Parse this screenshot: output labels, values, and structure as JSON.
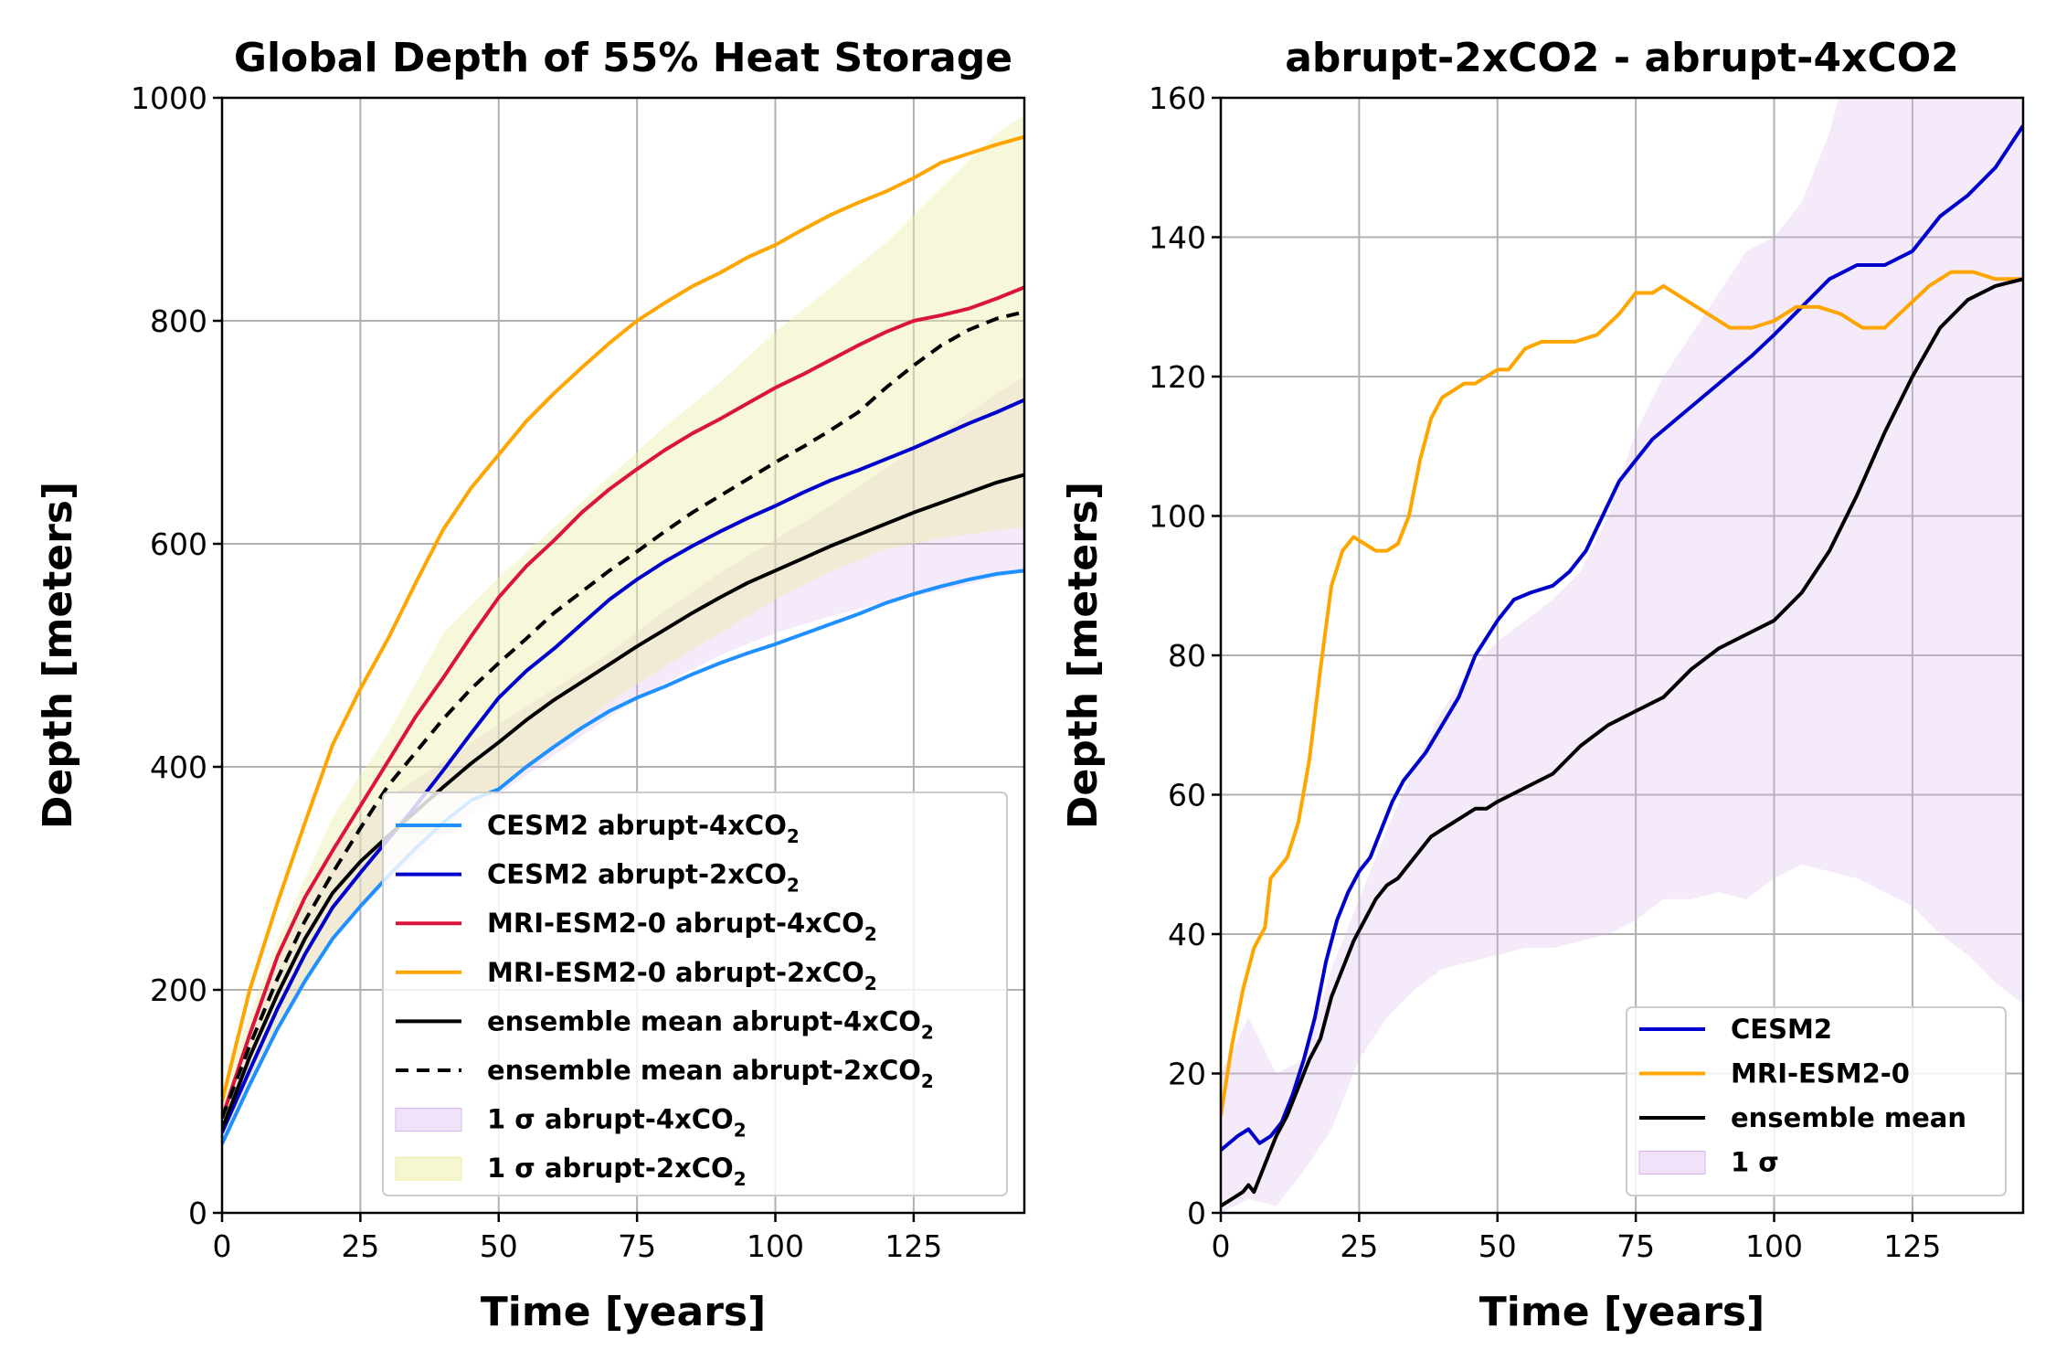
{
  "chart_data": [
    {
      "type": "line",
      "title": "Global Depth of 55% Heat Storage",
      "xlabel": "Time [years]",
      "ylabel": "Depth [meters]",
      "xlim": [
        0,
        145
      ],
      "ylim": [
        0,
        1000
      ],
      "xticks": [
        0,
        25,
        50,
        75,
        100,
        125
      ],
      "yticks": [
        0,
        200,
        400,
        600,
        800,
        1000
      ],
      "grid": true,
      "legend_position": "lower-right",
      "series": [
        {
          "name": "CESM2 abrupt-4xCO2",
          "label_main": "CESM2 abrupt-4xCO",
          "color": "#1e90ff",
          "dash": "solid",
          "x": [
            0,
            5,
            10,
            15,
            20,
            25,
            30,
            35,
            40,
            45,
            50,
            55,
            60,
            65,
            70,
            75,
            80,
            85,
            90,
            95,
            100,
            105,
            110,
            115,
            120,
            125,
            130,
            135,
            140,
            145
          ],
          "y": [
            62,
            115,
            165,
            208,
            246,
            275,
            302,
            327,
            350,
            370,
            380,
            400,
            418,
            435,
            450,
            462,
            472,
            483,
            493,
            502,
            510,
            519,
            528,
            537,
            547,
            555,
            562,
            568,
            573,
            576
          ]
        },
        {
          "name": "CESM2 abrupt-2xCO2",
          "label_main": "CESM2 abrupt-2xCO",
          "color": "#0000cd",
          "dash": "solid",
          "x": [
            0,
            5,
            10,
            15,
            20,
            25,
            30,
            35,
            40,
            45,
            50,
            55,
            60,
            65,
            70,
            75,
            80,
            85,
            90,
            95,
            100,
            105,
            110,
            115,
            120,
            125,
            130,
            135,
            140,
            145
          ],
          "y": [
            72,
            128,
            183,
            232,
            274,
            305,
            335,
            365,
            397,
            430,
            462,
            486,
            506,
            528,
            550,
            568,
            584,
            598,
            611,
            623,
            634,
            646,
            657,
            666,
            676,
            686,
            697,
            708,
            718,
            729
          ]
        },
        {
          "name": "MRI-ESM2-0 abrupt-4xCO2",
          "label_main": "MRI-ESM2-0 abrupt-4xCO",
          "color": "#dc143c",
          "dash": "solid",
          "x": [
            0,
            5,
            10,
            15,
            20,
            25,
            30,
            35,
            40,
            45,
            50,
            55,
            60,
            65,
            70,
            75,
            80,
            85,
            90,
            95,
            100,
            105,
            110,
            115,
            120,
            125,
            130,
            135,
            140,
            145
          ],
          "y": [
            85,
            160,
            230,
            283,
            325,
            365,
            405,
            445,
            480,
            517,
            552,
            580,
            603,
            628,
            649,
            667,
            684,
            699,
            712,
            726,
            740,
            752,
            765,
            778,
            790,
            800,
            805,
            811,
            820,
            830
          ]
        },
        {
          "name": "MRI-ESM2-0 abrupt-2xCO2",
          "label_main": "MRI-ESM2-0 abrupt-2xCO",
          "color": "#ffa500",
          "dash": "solid",
          "x": [
            0,
            5,
            10,
            15,
            20,
            25,
            30,
            35,
            40,
            45,
            50,
            55,
            60,
            65,
            70,
            75,
            80,
            85,
            90,
            95,
            100,
            105,
            110,
            115,
            120,
            125,
            130,
            135,
            140,
            145
          ],
          "y": [
            100,
            200,
            278,
            350,
            420,
            470,
            515,
            565,
            613,
            650,
            680,
            710,
            735,
            758,
            780,
            800,
            816,
            831,
            843,
            857,
            868,
            882,
            895,
            906,
            916,
            928,
            942,
            950,
            958,
            965
          ]
        },
        {
          "name": "ensemble mean abrupt-4xCO2",
          "label_main": "ensemble mean abrupt-4xCO",
          "color": "#000000",
          "dash": "solid",
          "x": [
            0,
            5,
            10,
            15,
            20,
            25,
            30,
            35,
            40,
            45,
            50,
            55,
            60,
            65,
            70,
            75,
            80,
            85,
            90,
            95,
            100,
            105,
            110,
            115,
            120,
            125,
            130,
            135,
            140,
            145
          ],
          "y": [
            75,
            140,
            196,
            246,
            287,
            315,
            338,
            360,
            382,
            403,
            422,
            442,
            460,
            476,
            492,
            508,
            523,
            538,
            552,
            565,
            576,
            587,
            598,
            608,
            618,
            628,
            637,
            646,
            655,
            662
          ]
        },
        {
          "name": "ensemble mean abrupt-2xCO2",
          "label_main": "ensemble mean abrupt-2xCO",
          "color": "#000000",
          "dash": "dashed",
          "x": [
            0,
            5,
            10,
            15,
            20,
            25,
            30,
            35,
            40,
            45,
            50,
            55,
            60,
            65,
            70,
            75,
            80,
            85,
            90,
            95,
            100,
            105,
            110,
            115,
            120,
            125,
            130,
            135,
            140,
            145
          ],
          "y": [
            85,
            150,
            210,
            262,
            305,
            345,
            383,
            413,
            443,
            470,
            493,
            515,
            538,
            557,
            576,
            593,
            611,
            628,
            643,
            658,
            673,
            687,
            702,
            718,
            740,
            760,
            778,
            792,
            802,
            808
          ]
        }
      ],
      "bands": [
        {
          "name": "1 σ abrupt-4xCO2",
          "label_main": "1 σ abrupt-4xCO",
          "color": "#d8b4ee",
          "opacity": 0.28,
          "x": [
            0,
            10,
            20,
            30,
            40,
            50,
            60,
            70,
            80,
            90,
            100,
            110,
            120,
            130,
            140,
            145
          ],
          "lower": [
            60,
            170,
            245,
            298,
            338,
            375,
            410,
            445,
            475,
            500,
            520,
            535,
            548,
            558,
            570,
            575
          ],
          "upper": [
            95,
            225,
            330,
            372,
            405,
            438,
            470,
            502,
            540,
            574,
            604,
            634,
            668,
            700,
            735,
            750
          ]
        },
        {
          "name": "1 σ abrupt-2xCO2",
          "label_main": "1 σ abrupt-2xCO",
          "color": "#eeeeaa",
          "opacity": 0.45,
          "x": [
            0,
            10,
            20,
            30,
            40,
            50,
            60,
            70,
            80,
            90,
            100,
            110,
            120,
            130,
            140,
            145
          ],
          "lower": [
            70,
            160,
            245,
            300,
            345,
            382,
            418,
            458,
            490,
            520,
            550,
            575,
            595,
            605,
            612,
            615
          ],
          "upper": [
            110,
            245,
            355,
            430,
            520,
            570,
            615,
            660,
            705,
            745,
            790,
            830,
            870,
            920,
            968,
            985
          ]
        }
      ],
      "legend": [
        {
          "main": "CESM2 abrupt-4xCO",
          "sub": "2"
        },
        {
          "main": "CESM2 abrupt-2xCO",
          "sub": "2"
        },
        {
          "main": "MRI-ESM2-0 abrupt-4xCO",
          "sub": "2"
        },
        {
          "main": "MRI-ESM2-0 abrupt-2xCO",
          "sub": "2"
        },
        {
          "main": "ensemble mean abrupt-4xCO",
          "sub": "2"
        },
        {
          "main": "ensemble mean abrupt-2xCO",
          "sub": "2"
        },
        {
          "main": "1 σ abrupt-4xCO",
          "sub": "2"
        },
        {
          "main": "1 σ abrupt-2xCO",
          "sub": "2"
        }
      ]
    },
    {
      "type": "line",
      "title": "abrupt-2xCO2 - abrupt-4xCO2",
      "xlabel": "Time [years]",
      "ylabel": "Depth [meters]",
      "xlim": [
        0,
        145
      ],
      "ylim": [
        0,
        160
      ],
      "xticks": [
        0,
        25,
        50,
        75,
        100,
        125
      ],
      "yticks": [
        0,
        20,
        40,
        60,
        80,
        100,
        120,
        140,
        160
      ],
      "grid": true,
      "legend_position": "lower-right",
      "series": [
        {
          "name": "CESM2",
          "color": "#0000cd",
          "dash": "solid",
          "x": [
            0,
            3,
            5,
            7,
            9,
            11,
            13,
            15,
            17,
            19,
            21,
            23,
            25,
            27,
            29,
            31,
            33,
            35,
            37,
            40,
            43,
            46,
            50,
            53,
            56,
            60,
            63,
            66,
            69,
            72,
            75,
            78,
            81,
            84,
            87,
            90,
            93,
            96,
            100,
            105,
            110,
            115,
            120,
            125,
            130,
            135,
            140,
            145
          ],
          "y": [
            9,
            11,
            12,
            10,
            11,
            13,
            17,
            22,
            28,
            36,
            42,
            46,
            49,
            51,
            55,
            59,
            62,
            64,
            66,
            70,
            74,
            80,
            85,
            88,
            89,
            90,
            92,
            95,
            100,
            105,
            108,
            111,
            113,
            115,
            117,
            119,
            121,
            123,
            126,
            130,
            134,
            136,
            136,
            138,
            143,
            146,
            150,
            156
          ]
        },
        {
          "name": "MRI-ESM2-0",
          "color": "#ffa500",
          "dash": "solid",
          "x": [
            0,
            2,
            4,
            6,
            8,
            9,
            10,
            12,
            14,
            16,
            18,
            20,
            22,
            24,
            26,
            28,
            30,
            32,
            34,
            36,
            38,
            40,
            42,
            44,
            46,
            48,
            50,
            52,
            55,
            58,
            60,
            64,
            68,
            72,
            75,
            78,
            80,
            84,
            88,
            92,
            96,
            100,
            104,
            108,
            112,
            116,
            120,
            124,
            128,
            132,
            136,
            140,
            145
          ],
          "y": [
            14,
            24,
            32,
            38,
            41,
            48,
            49,
            51,
            56,
            65,
            78,
            90,
            95,
            97,
            96,
            95,
            95,
            96,
            100,
            108,
            114,
            117,
            118,
            119,
            119,
            120,
            121,
            121,
            124,
            125,
            125,
            125,
            126,
            129,
            132,
            132,
            133,
            131,
            129,
            127,
            127,
            128,
            130,
            130,
            129,
            127,
            127,
            130,
            133,
            135,
            135,
            134,
            134
          ]
        },
        {
          "name": "ensemble mean",
          "color": "#000000",
          "dash": "solid",
          "x": [
            0,
            2,
            4,
            5,
            6,
            8,
            10,
            12,
            14,
            16,
            18,
            20,
            22,
            24,
            26,
            28,
            30,
            32,
            34,
            36,
            38,
            40,
            42,
            44,
            46,
            48,
            50,
            55,
            60,
            65,
            70,
            75,
            80,
            85,
            90,
            95,
            100,
            105,
            110,
            115,
            120,
            125,
            130,
            135,
            140,
            145
          ],
          "y": [
            1,
            2,
            3,
            4,
            3,
            7,
            11,
            14,
            18,
            22,
            25,
            31,
            35,
            39,
            42,
            45,
            47,
            48,
            50,
            52,
            54,
            55,
            56,
            57,
            58,
            58,
            59,
            61,
            63,
            67,
            70,
            72,
            74,
            78,
            81,
            83,
            85,
            89,
            95,
            103,
            112,
            120,
            127,
            131,
            133,
            134
          ]
        }
      ],
      "bands": [
        {
          "name": "1 σ",
          "color": "#d8b4ee",
          "opacity": 0.28,
          "x": [
            0,
            5,
            10,
            15,
            20,
            25,
            30,
            35,
            40,
            45,
            50,
            55,
            60,
            65,
            70,
            75,
            80,
            85,
            90,
            95,
            100,
            105,
            110,
            115,
            120,
            125,
            130,
            135,
            140,
            145
          ],
          "lower": [
            0,
            2,
            1,
            6,
            12,
            22,
            28,
            32,
            35,
            36,
            37,
            38,
            38,
            39,
            40,
            42,
            45,
            45,
            46,
            45,
            48,
            50,
            49,
            48,
            46,
            44,
            40,
            37,
            33,
            30
          ],
          "upper": [
            20,
            28,
            20,
            22,
            35,
            45,
            55,
            64,
            72,
            78,
            82,
            85,
            88,
            92,
            100,
            112,
            120,
            126,
            132,
            138,
            140,
            145,
            155,
            170,
            175,
            176,
            178,
            185,
            190,
            200
          ]
        }
      ],
      "legend": [
        {
          "main": "CESM2",
          "sub": ""
        },
        {
          "main": "MRI-ESM2-0",
          "sub": ""
        },
        {
          "main": "ensemble mean",
          "sub": ""
        },
        {
          "main": "1 σ",
          "sub": ""
        }
      ]
    }
  ]
}
